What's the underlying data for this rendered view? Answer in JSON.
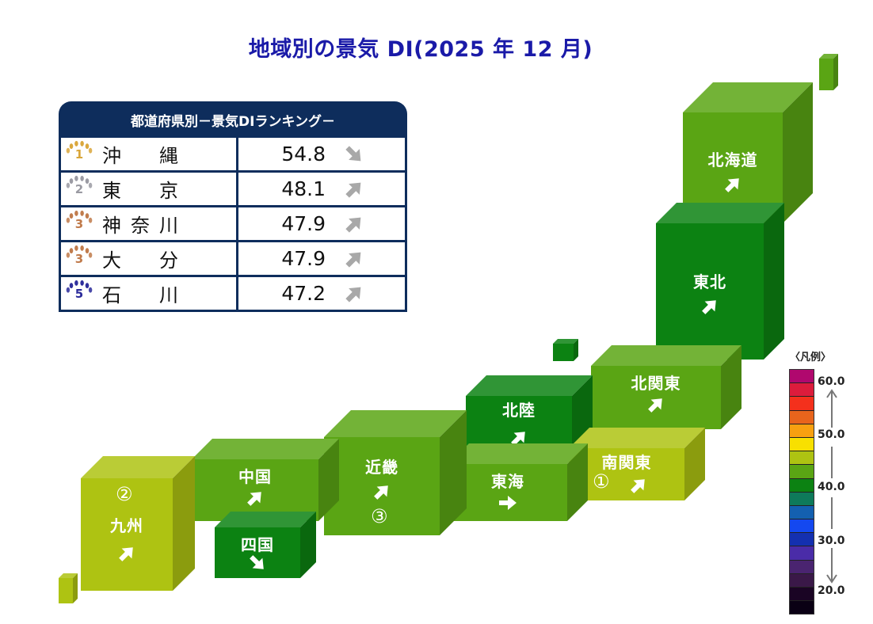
{
  "title": "地域別の景気 DI(2025 年 12 月)",
  "ranking": {
    "header": "都道府県別－景気DIランキング－",
    "rows": [
      {
        "rank": "1",
        "medal_color": "#d9a63a",
        "name_chars": [
          "沖",
          "縄"
        ],
        "value": "54.8",
        "trend": "down"
      },
      {
        "rank": "2",
        "medal_color": "#9a9aa2",
        "name_chars": [
          "東",
          "京"
        ],
        "value": "48.1",
        "trend": "up"
      },
      {
        "rank": "3",
        "medal_color": "#c07a4a",
        "name_chars": [
          "神",
          "奈",
          "川"
        ],
        "value": "47.9",
        "trend": "up"
      },
      {
        "rank": "3",
        "medal_color": "#c07a4a",
        "name_chars": [
          "大",
          "分"
        ],
        "value": "47.9",
        "trend": "up"
      },
      {
        "rank": "5",
        "medal_color": "#2a2a9a",
        "name_chars": [
          "石",
          "川"
        ],
        "value": "47.2",
        "trend": "up"
      }
    ]
  },
  "regions": [
    {
      "id": "hokkaido",
      "label": "北海道",
      "trend": "up",
      "rank_mark": "",
      "color": "#5aa514"
    },
    {
      "id": "tohoku",
      "label": "東北",
      "trend": "up",
      "rank_mark": "",
      "color": "#0c8212"
    },
    {
      "id": "kita-kanto",
      "label": "北関東",
      "trend": "up",
      "rank_mark": "",
      "color": "#5aa514"
    },
    {
      "id": "minami-kanto",
      "label": "南関東",
      "trend": "up",
      "rank_mark": "①",
      "color": "#aec312"
    },
    {
      "id": "hokuriku",
      "label": "北陸",
      "trend": "up",
      "rank_mark": "",
      "color": "#0c8212"
    },
    {
      "id": "tokai",
      "label": "東海",
      "trend": "flat",
      "rank_mark": "",
      "color": "#5aa514"
    },
    {
      "id": "kinki",
      "label": "近畿",
      "trend": "up",
      "rank_mark": "③",
      "color": "#5aa514"
    },
    {
      "id": "chugoku",
      "label": "中国",
      "trend": "up",
      "rank_mark": "",
      "color": "#5aa514"
    },
    {
      "id": "shikoku",
      "label": "四国",
      "trend": "down",
      "rank_mark": "",
      "color": "#0c8212"
    },
    {
      "id": "kyushu",
      "label": "九州",
      "trend": "up",
      "rank_mark": "②",
      "color": "#aec312"
    }
  ],
  "legend": {
    "title": "〈凡例〉",
    "ticks": [
      "60.0",
      "50.0",
      "40.0",
      "30.0",
      "20.0"
    ],
    "colors": [
      "#b0086e",
      "#dc1c3c",
      "#f4301c",
      "#e8641c",
      "#f8a010",
      "#f8e000",
      "#aec312",
      "#5aa514",
      "#0c8212",
      "#0e7a5a",
      "#1460b0",
      "#1448f0",
      "#1430b0",
      "#4a2ca8",
      "#4a2470",
      "#3a1848",
      "#1a0424",
      "#0a0014"
    ]
  },
  "chart_data": {
    "type": "heatmap",
    "title": "地域別の景気 DI(2025 年 12 月)",
    "subtitle": "都道府県別－景気DIランキング－",
    "ranking_table": [
      {
        "rank": 1,
        "prefecture": "沖縄",
        "di": 54.8,
        "trend": "down"
      },
      {
        "rank": 2,
        "prefecture": "東京",
        "di": 48.1,
        "trend": "up"
      },
      {
        "rank": 3,
        "prefecture": "神奈川",
        "di": 47.9,
        "trend": "up"
      },
      {
        "rank": 3,
        "prefecture": "大分",
        "di": 47.9,
        "trend": "up"
      },
      {
        "rank": 5,
        "prefecture": "石川",
        "di": 47.2,
        "trend": "up"
      }
    ],
    "regions": [
      {
        "region": "北海道",
        "di_band": "42.5-45.0",
        "trend": "up",
        "rank": null
      },
      {
        "region": "東北",
        "di_band": "40.0-42.5",
        "trend": "up",
        "rank": null
      },
      {
        "region": "北関東",
        "di_band": "42.5-45.0",
        "trend": "up",
        "rank": null
      },
      {
        "region": "南関東",
        "di_band": "45.0-47.5",
        "trend": "up",
        "rank": 1
      },
      {
        "region": "北陸",
        "di_band": "40.0-42.5",
        "trend": "up",
        "rank": null
      },
      {
        "region": "東海",
        "di_band": "42.5-45.0",
        "trend": "flat",
        "rank": null
      },
      {
        "region": "近畿",
        "di_band": "42.5-45.0",
        "trend": "up",
        "rank": 3
      },
      {
        "region": "中国",
        "di_band": "42.5-45.0",
        "trend": "up",
        "rank": null
      },
      {
        "region": "四国",
        "di_band": "40.0-42.5",
        "trend": "down",
        "rank": null
      },
      {
        "region": "九州",
        "di_band": "45.0-47.5",
        "trend": "up",
        "rank": 2
      }
    ],
    "legend": {
      "title": "凡例",
      "range": [
        20.0,
        60.0
      ],
      "ticks": [
        60.0,
        50.0,
        40.0,
        30.0,
        20.0
      ]
    }
  }
}
